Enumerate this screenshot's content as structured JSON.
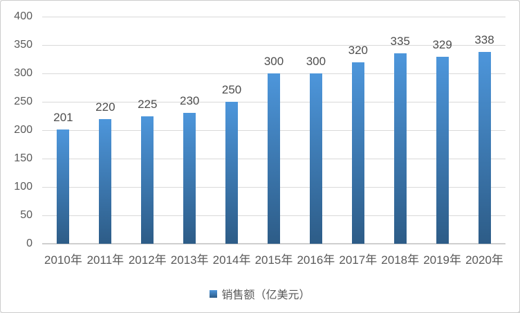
{
  "chart_data": {
    "type": "bar",
    "title": "",
    "categories": [
      "2010年",
      "2011年",
      "2012年",
      "2013年",
      "2014年",
      "2015年",
      "2016年",
      "2017年",
      "2018年",
      "2019年",
      "2020年"
    ],
    "series": [
      {
        "name": "销售额（亿美元）",
        "values": [
          201,
          220,
          225,
          230,
          250,
          300,
          300,
          320,
          335,
          329,
          338
        ]
      }
    ],
    "xlabel": "",
    "ylabel": "",
    "ylim": [
      0,
      400
    ],
    "ytick_step": 50,
    "ytick_labels": [
      "0",
      "50",
      "100",
      "150",
      "200",
      "250",
      "300",
      "350",
      "400"
    ],
    "grid": true,
    "legend_position": "bottom",
    "data_labels": true
  },
  "legend": {
    "label": "销售额（亿美元）"
  },
  "style": {
    "bar_gradient_top": "#4D96DB",
    "bar_gradient_bottom": "#2D5C87",
    "gridline_color": "#D9D9D9",
    "tick_label_color": "#595959",
    "data_label_color": "#4D4D4D",
    "frame_border_color": "#CCCCCC",
    "background": "#FFFFFF"
  }
}
